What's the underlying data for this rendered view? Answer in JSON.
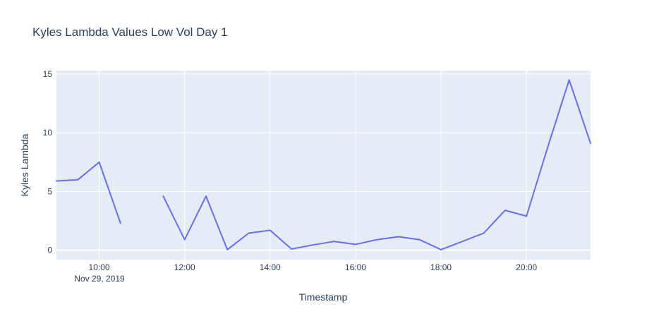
{
  "chart_data": {
    "type": "line",
    "title": "Kyles Lambda Values Low Vol Day 1",
    "xlabel": "Timestamp",
    "ylabel": "Kyles Lambda",
    "date_label": "Nov 29, 2019",
    "x_ticks": [
      "10:00",
      "12:00",
      "14:00",
      "16:00",
      "18:00",
      "20:00"
    ],
    "y_ticks": [
      "0",
      "5",
      "10",
      "15"
    ],
    "xlim": [
      "09:00",
      "21:30"
    ],
    "ylim": [
      -0.8,
      15.3
    ],
    "grid": true,
    "background_color": "#e5ecf6",
    "line_color": "#636efa",
    "series": [
      {
        "x": [
          "09:00",
          "09:30",
          "10:00",
          "10:30",
          "11:00",
          "11:30",
          "12:00",
          "12:30",
          "13:00",
          "13:30",
          "14:00",
          "14:30",
          "15:00",
          "15:30",
          "16:00",
          "16:30",
          "17:00",
          "17:30",
          "18:00",
          "18:30",
          "19:00",
          "19:30",
          "20:00",
          "20:30",
          "21:00",
          "21:30"
        ],
        "values": [
          5.9,
          6.0,
          7.5,
          2.3,
          null,
          4.6,
          0.9,
          4.6,
          0.05,
          1.45,
          1.7,
          0.1,
          0.45,
          0.75,
          0.5,
          0.9,
          1.15,
          0.9,
          0.05,
          0.75,
          1.45,
          3.4,
          2.9,
          8.8,
          14.5,
          9.1
        ]
      }
    ]
  }
}
